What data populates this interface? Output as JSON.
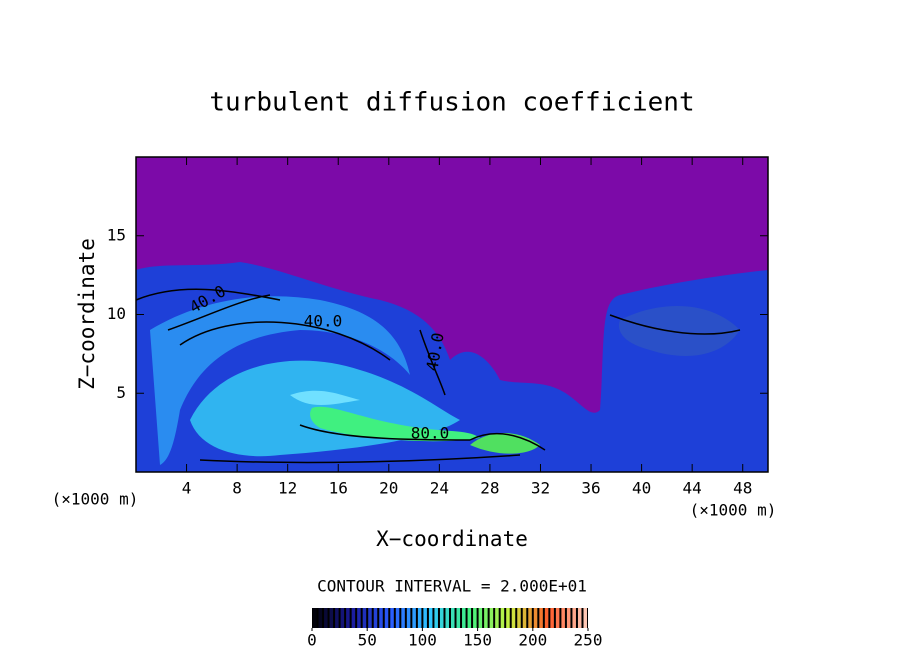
{
  "chart_data": {
    "type": "contour",
    "title": "turbulent diffusion coefficient",
    "x_label": "X−coordinate",
    "y_label": "Z−coordinate",
    "x_unit_labels": [
      "(×1000 m)",
      "(×1000 m)"
    ],
    "xlim": [
      0,
      50
    ],
    "xticks": [
      4,
      8,
      12,
      16,
      20,
      24,
      28,
      32,
      36,
      40,
      44,
      48
    ],
    "ylim": [
      0,
      20
    ],
    "yticks": [
      5,
      10,
      15
    ],
    "contour_labels": [
      "40.0",
      "40.0",
      "80.0",
      "40.0"
    ],
    "contour_interval_label": "CONTOUR INTERVAL = 2.000E+01",
    "colorbar": {
      "clim": [
        0,
        250
      ],
      "ticks": [
        0,
        50,
        100,
        150,
        200,
        250
      ],
      "colormap": [
        "#000000",
        "#1a1a9a",
        "#2a5cff",
        "#30c8ff",
        "#40f080",
        "#c8f040",
        "#ff5a2a",
        "#ffd0c0"
      ]
    }
  }
}
